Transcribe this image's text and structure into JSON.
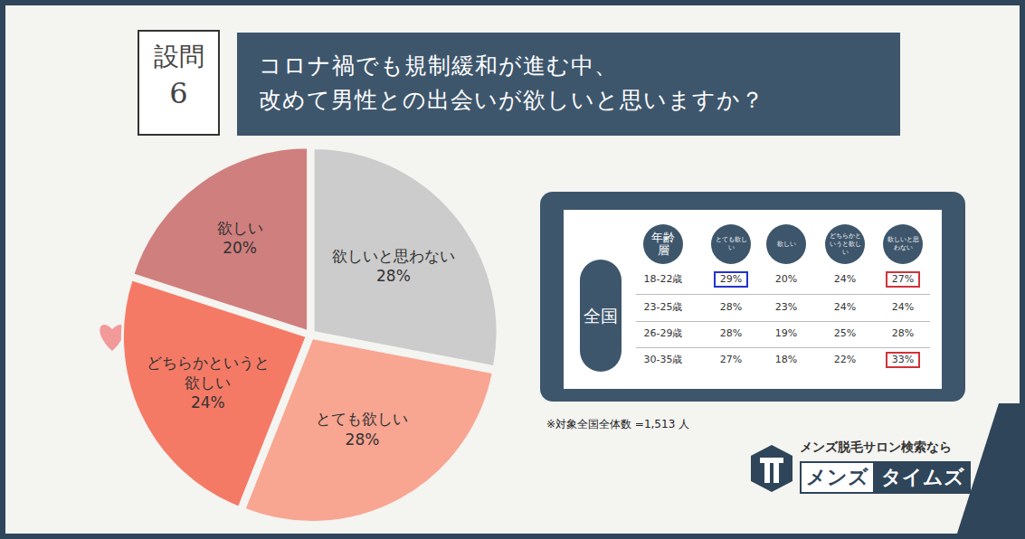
{
  "header": {
    "label": "設問",
    "number": "6",
    "title": [
      "コロナ禍でも規制緩和が進む中、",
      "改めて男性との出会いが欲しいと思いますか？"
    ]
  },
  "chart_data": {
    "type": "pie",
    "categories": [
      "欲しいと思わない",
      "とても欲しい",
      "どちらかというと欲しい",
      "欲しい"
    ],
    "values": [
      28,
      28,
      24,
      20
    ],
    "value_labels": [
      "28%",
      "28%",
      "24%",
      "20%"
    ],
    "colors": [
      "#cccccc",
      "#f8a591",
      "#f57a66",
      "#cf7f7d"
    ],
    "data_labels": true
  },
  "table": {
    "region": "全国",
    "columns": [
      "年齢層",
      "とても欲しい",
      "欲しい",
      "どちらかというと欲しい",
      "欲しいと思わない"
    ],
    "rows": [
      [
        "18-22歳",
        "29%",
        "20%",
        "24%",
        "27%"
      ],
      [
        "23-25歳",
        "28%",
        "23%",
        "24%",
        "24%"
      ],
      [
        "26-29歳",
        "28%",
        "19%",
        "25%",
        "28%"
      ],
      [
        "30-35歳",
        "27%",
        "18%",
        "22%",
        "33%"
      ]
    ],
    "highlights": [
      {
        "row": 0,
        "col": 1,
        "color": "#2233cc"
      },
      {
        "row": 0,
        "col": 4,
        "color": "#d0333a"
      },
      {
        "row": 3,
        "col": 4,
        "color": "#d0333a"
      }
    ]
  },
  "footnote": "※対象全国全体数 =1,513 人",
  "logo": {
    "tagline": "メンズ脱毛サロン検索なら",
    "name": [
      "メンズ",
      "タイムズ"
    ]
  }
}
